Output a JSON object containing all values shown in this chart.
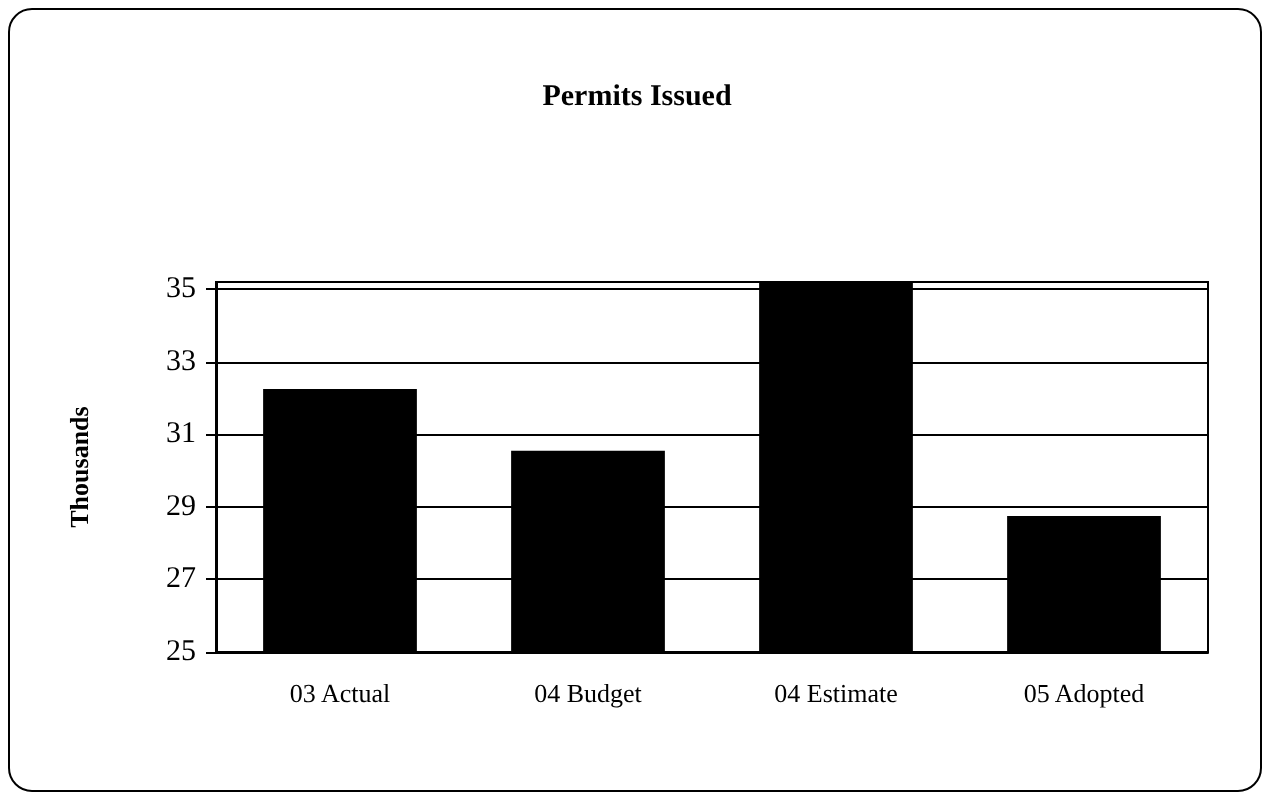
{
  "chart_data": {
    "type": "bar",
    "title": "Permits Issued",
    "ylabel": "Thousands",
    "categories": [
      "03 Actual",
      "04 Budget",
      "04 Estimate",
      "05 Adopted"
    ],
    "values": [
      32.25,
      30.55,
      35.2,
      28.75
    ],
    "color": "#000000",
    "ylim": [
      25,
      35.2
    ],
    "yticks": [
      25,
      27,
      29,
      31,
      33,
      35
    ],
    "grid": "y"
  }
}
